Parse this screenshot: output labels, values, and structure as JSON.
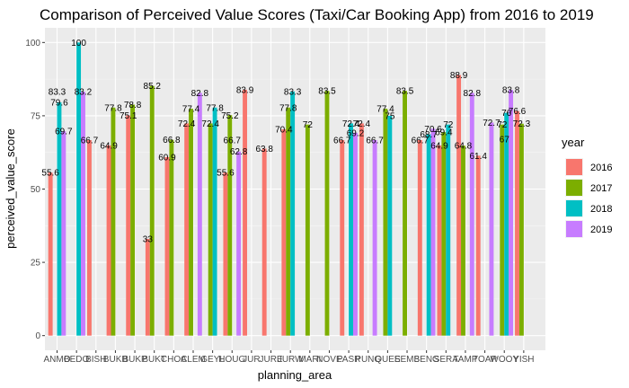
{
  "chart_data": {
    "type": "bar",
    "title": "Comparison of Perceived Value Scores (Taxi/Car Booking App) from 2016 to 2019",
    "xlabel": "planning_area",
    "ylabel": "perceived_value_score",
    "ylim": [
      0,
      105
    ],
    "yticks": [
      0,
      25,
      50,
      75,
      100
    ],
    "grid": true,
    "legend": {
      "title": "year",
      "position": "right"
    },
    "categories": [
      "ANMO",
      "BEDO",
      "BISH",
      "BUKB",
      "BUKP",
      "BUKT",
      "CHOA",
      "CLEM",
      "GEYL",
      "HOUG",
      "JUR",
      "JURE",
      "JURW",
      "MARI",
      "NOVE",
      "PASR",
      "PUNG",
      "QUEE",
      "SEMB",
      "SENG",
      "SERA",
      "TAMP",
      "TOAP",
      "WOOY",
      "YISH"
    ],
    "tick_labels": [
      "ANMO",
      "BEDO",
      "BISH",
      "BUKB",
      "BUKP",
      "BUKT",
      "CHOA",
      "CLEM",
      "GEYL",
      "HOUG",
      "JUR",
      "JURE",
      "JURW",
      "MARI",
      "NOVE",
      "PASR",
      "PUNG",
      "QUEE",
      "SEMB",
      "SENG",
      "SERA",
      "TAMP",
      "TOAP",
      "WOOY",
      "YISH"
    ],
    "series": [
      {
        "name": "2016",
        "color": "#F8766D",
        "values": [
          55.6,
          null,
          66.7,
          64.9,
          75.1,
          33.0,
          60.9,
          72.4,
          null,
          55.6,
          83.9,
          63.8,
          70.4,
          null,
          null,
          66.7,
          72.4,
          null,
          null,
          66.7,
          64.9,
          88.9,
          61.4,
          null,
          76.6
        ]
      },
      {
        "name": "2017",
        "color": "#7CAE00",
        "values": [
          null,
          null,
          null,
          77.8,
          78.8,
          85.2,
          66.8,
          77.4,
          72.4,
          75.2,
          null,
          null,
          77.8,
          72.0,
          83.5,
          null,
          null,
          77.4,
          83.5,
          null,
          69.4,
          64.8,
          null,
          72.0,
          72.3
        ]
      },
      {
        "name": "2018",
        "color": "#00BFC4",
        "values": [
          79.6,
          100.0,
          null,
          null,
          null,
          null,
          null,
          null,
          77.8,
          null,
          null,
          null,
          83.3,
          null,
          null,
          72.4,
          null,
          75.0,
          null,
          68.7,
          72.0,
          null,
          null,
          76.0,
          null
        ]
      },
      {
        "name": "2019",
        "color": "#C77CFF",
        "values": [
          69.7,
          83.2,
          null,
          null,
          null,
          null,
          null,
          82.8,
          null,
          62.8,
          null,
          null,
          null,
          null,
          null,
          69.2,
          66.7,
          null,
          null,
          70.6,
          null,
          82.8,
          72.7,
          83.8,
          null
        ]
      }
    ],
    "extra_labels": [
      {
        "category": "ANMO",
        "value": 83.3
      },
      {
        "category": "HOUG",
        "value": 66.7
      },
      {
        "category": "WOOY",
        "value": 67.0
      }
    ]
  }
}
